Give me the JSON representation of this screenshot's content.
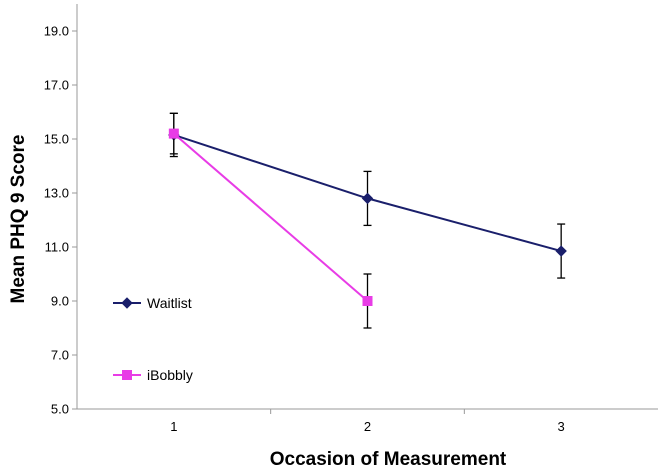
{
  "chart_data": {
    "type": "line",
    "title": "",
    "xlabel": "Occasion of Measurement",
    "ylabel": "Mean PHQ 9 Score",
    "x": [
      1,
      2,
      3
    ],
    "x_tick_labels": [
      "1",
      "2",
      "3"
    ],
    "xlim": [
      0.5,
      3.5
    ],
    "ylim": [
      5.0,
      20.0
    ],
    "y_ticks": [
      5.0,
      7.0,
      9.0,
      11.0,
      13.0,
      15.0,
      17.0,
      19.0
    ],
    "y_tick_labels": [
      "5.0",
      "7.0",
      "9.0",
      "11.0",
      "13.0",
      "15.0",
      "17.0",
      "19.0"
    ],
    "grid": false,
    "legend_position": "left",
    "series": [
      {
        "name": "Waitlist",
        "color": "#1a1f6b",
        "marker": "diamond",
        "x": [
          1,
          2,
          3
        ],
        "values": [
          15.15,
          12.8,
          10.85
        ],
        "error": [
          0.8,
          1.0,
          1.0
        ]
      },
      {
        "name": "iBobbly",
        "color": "#e83ce6",
        "marker": "square",
        "x": [
          1,
          2
        ],
        "values": [
          15.2,
          9.0
        ],
        "error": [
          0.75,
          1.0
        ]
      }
    ]
  }
}
